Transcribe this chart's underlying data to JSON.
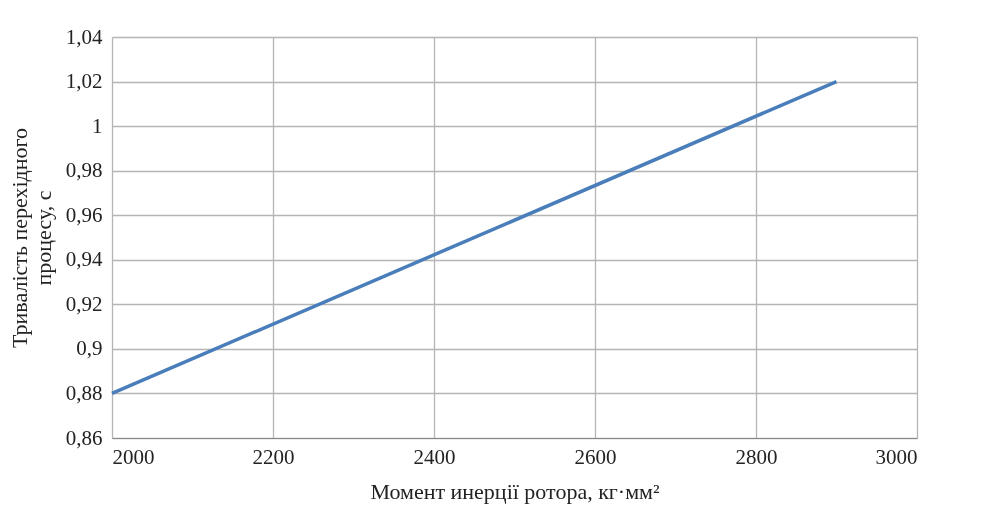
{
  "chart_data": {
    "type": "line",
    "xlabel": "Момент инерції ротора, кг·мм²",
    "ylabel": "Тривалість перехідного процесу, с",
    "x": [
      2000,
      2900
    ],
    "series": [
      {
        "color": "#4a7ebb",
        "values": [
          0.88,
          1.02
        ]
      }
    ],
    "xlim": [
      2000,
      3000
    ],
    "xticks": [
      2000,
      2200,
      2400,
      2600,
      2800,
      3000
    ],
    "ylim": [
      0.86,
      1.04
    ],
    "yticks": [
      {
        "value": 0.86,
        "label": "0,86"
      },
      {
        "value": 0.88,
        "label": "0,88"
      },
      {
        "value": 0.9,
        "label": "0,9"
      },
      {
        "value": 0.92,
        "label": "0,92"
      },
      {
        "value": 0.94,
        "label": "0,94"
      },
      {
        "value": 0.96,
        "label": "0,96"
      },
      {
        "value": 0.98,
        "label": "0,98"
      },
      1,
      {
        "value": 1.02,
        "label": "1,02"
      },
      {
        "value": 1.04,
        "label": "1,04"
      }
    ],
    "grid": true,
    "marker": "none",
    "line_style": "solid"
  }
}
